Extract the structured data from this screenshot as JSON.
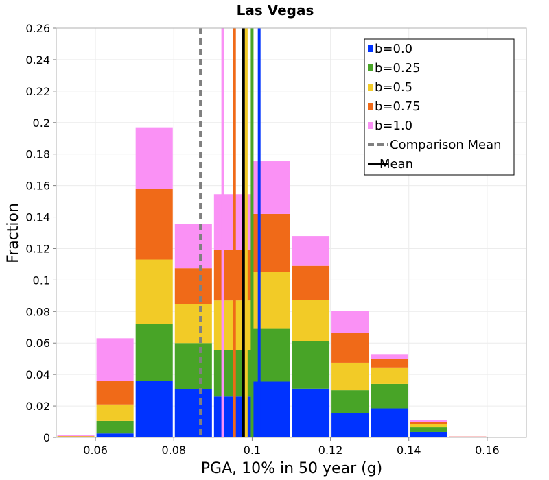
{
  "chart_data": {
    "type": "bar",
    "stacked": true,
    "title": "Las Vegas",
    "xlabel": "PGA, 10% in 50 year (g)",
    "ylabel": "Fraction",
    "xlim": [
      0.05,
      0.17
    ],
    "ylim": [
      0,
      0.26
    ],
    "xticks": [
      "0.06",
      "0.08",
      "0.1",
      "0.12",
      "0.14",
      "0.16"
    ],
    "yticks": [
      "0",
      "0.02",
      "0.04",
      "0.06",
      "0.08",
      "0.1",
      "0.12",
      "0.14",
      "0.16",
      "0.18",
      "0.2",
      "0.22",
      "0.24",
      "0.26"
    ],
    "grid": true,
    "legend_position": "top-right",
    "bin_width": 0.01,
    "bin_centers": [
      0.055,
      0.065,
      0.075,
      0.085,
      0.095,
      0.105,
      0.115,
      0.125,
      0.135,
      0.145,
      0.155
    ],
    "series": [
      {
        "name": "b=0.0",
        "color": "#0033ff",
        "values": [
          0.0003,
          0.0025,
          0.036,
          0.0305,
          0.026,
          0.0355,
          0.031,
          0.0155,
          0.0185,
          0.0035,
          0.0003
        ]
      },
      {
        "name": "b=0.25",
        "color": "#48a427",
        "values": [
          0.0002,
          0.008,
          0.036,
          0.0295,
          0.0295,
          0.0335,
          0.03,
          0.0145,
          0.0155,
          0.003,
          0.0001
        ]
      },
      {
        "name": "b=0.5",
        "color": "#f2cb27",
        "values": [
          0.0002,
          0.0105,
          0.041,
          0.0245,
          0.0315,
          0.036,
          0.0265,
          0.0175,
          0.0105,
          0.002,
          0.0001
        ]
      },
      {
        "name": "b=0.75",
        "color": "#f06a18",
        "values": [
          0.0002,
          0.015,
          0.045,
          0.023,
          0.032,
          0.037,
          0.0215,
          0.019,
          0.0055,
          0.0015,
          0.0001
        ]
      },
      {
        "name": "b=1.0",
        "color": "#fa91f5",
        "values": [
          0.0006,
          0.027,
          0.039,
          0.028,
          0.0355,
          0.0335,
          0.019,
          0.014,
          0.003,
          0.001,
          0.0001
        ]
      }
    ],
    "vertical_lines": [
      {
        "name": "Comparison Mean",
        "x": 0.0868,
        "color": "#808080",
        "style": "dashed"
      },
      {
        "name": "b=1.0 mean",
        "x": 0.0925,
        "color": "#fa91f5",
        "style": "solid"
      },
      {
        "name": "b=0.75 mean",
        "x": 0.0955,
        "color": "#f06a18",
        "style": "solid"
      },
      {
        "name": "Mean",
        "x": 0.0978,
        "color": "#000000",
        "style": "solid"
      },
      {
        "name": "b=0.5 mean",
        "x": 0.0985,
        "color": "#f2cb27",
        "style": "solid"
      },
      {
        "name": "b=0.25 mean",
        "x": 0.1,
        "color": "#48a427",
        "style": "solid"
      },
      {
        "name": "b=0.0 mean",
        "x": 0.1018,
        "color": "#0033ff",
        "style": "solid"
      }
    ],
    "legend": [
      {
        "label": "b=0.0",
        "kind": "box",
        "color": "#0033ff"
      },
      {
        "label": "b=0.25",
        "kind": "box",
        "color": "#48a427"
      },
      {
        "label": "b=0.5",
        "kind": "box",
        "color": "#f2cb27"
      },
      {
        "label": "b=0.75",
        "kind": "box",
        "color": "#f06a18"
      },
      {
        "label": "b=1.0",
        "kind": "box",
        "color": "#fa91f5"
      },
      {
        "label": "Comparison Mean",
        "kind": "dashed",
        "color": "#808080"
      },
      {
        "label": "Mean",
        "kind": "solid",
        "color": "#000000"
      }
    ]
  }
}
